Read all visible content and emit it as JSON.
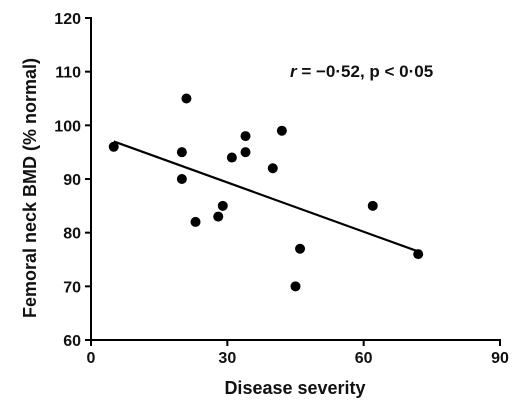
{
  "chart_data": {
    "type": "scatter",
    "xlabel": "Disease severity",
    "ylabel": "Femoral neck BMD (% normal)",
    "xlim": [
      0,
      90
    ],
    "ylim": [
      60,
      120
    ],
    "xticks": [
      0,
      30,
      60,
      90
    ],
    "yticks": [
      60,
      70,
      80,
      90,
      100,
      110,
      120
    ],
    "xtick_labels": [
      "0",
      "30",
      "60",
      "90"
    ],
    "ytick_labels": [
      "60",
      "70",
      "80",
      "90",
      "100",
      "110",
      "120"
    ],
    "points": [
      {
        "x": 5,
        "y": 96
      },
      {
        "x": 20,
        "y": 95
      },
      {
        "x": 20,
        "y": 90
      },
      {
        "x": 21,
        "y": 105
      },
      {
        "x": 23,
        "y": 82
      },
      {
        "x": 28,
        "y": 83
      },
      {
        "x": 29,
        "y": 85
      },
      {
        "x": 31,
        "y": 94
      },
      {
        "x": 34,
        "y": 95
      },
      {
        "x": 34,
        "y": 98
      },
      {
        "x": 40,
        "y": 92
      },
      {
        "x": 42,
        "y": 99
      },
      {
        "x": 45,
        "y": 70
      },
      {
        "x": 46,
        "y": 77
      },
      {
        "x": 62,
        "y": 85
      },
      {
        "x": 72,
        "y": 76
      }
    ],
    "regression_line": {
      "x": [
        5,
        72
      ],
      "y": [
        97,
        76.5
      ]
    },
    "annotation": {
      "r_symbol": "r",
      "text": " = −0·52, p < 0·05"
    },
    "grid": false,
    "marker_color": "#000000",
    "line_color": "#000000"
  }
}
